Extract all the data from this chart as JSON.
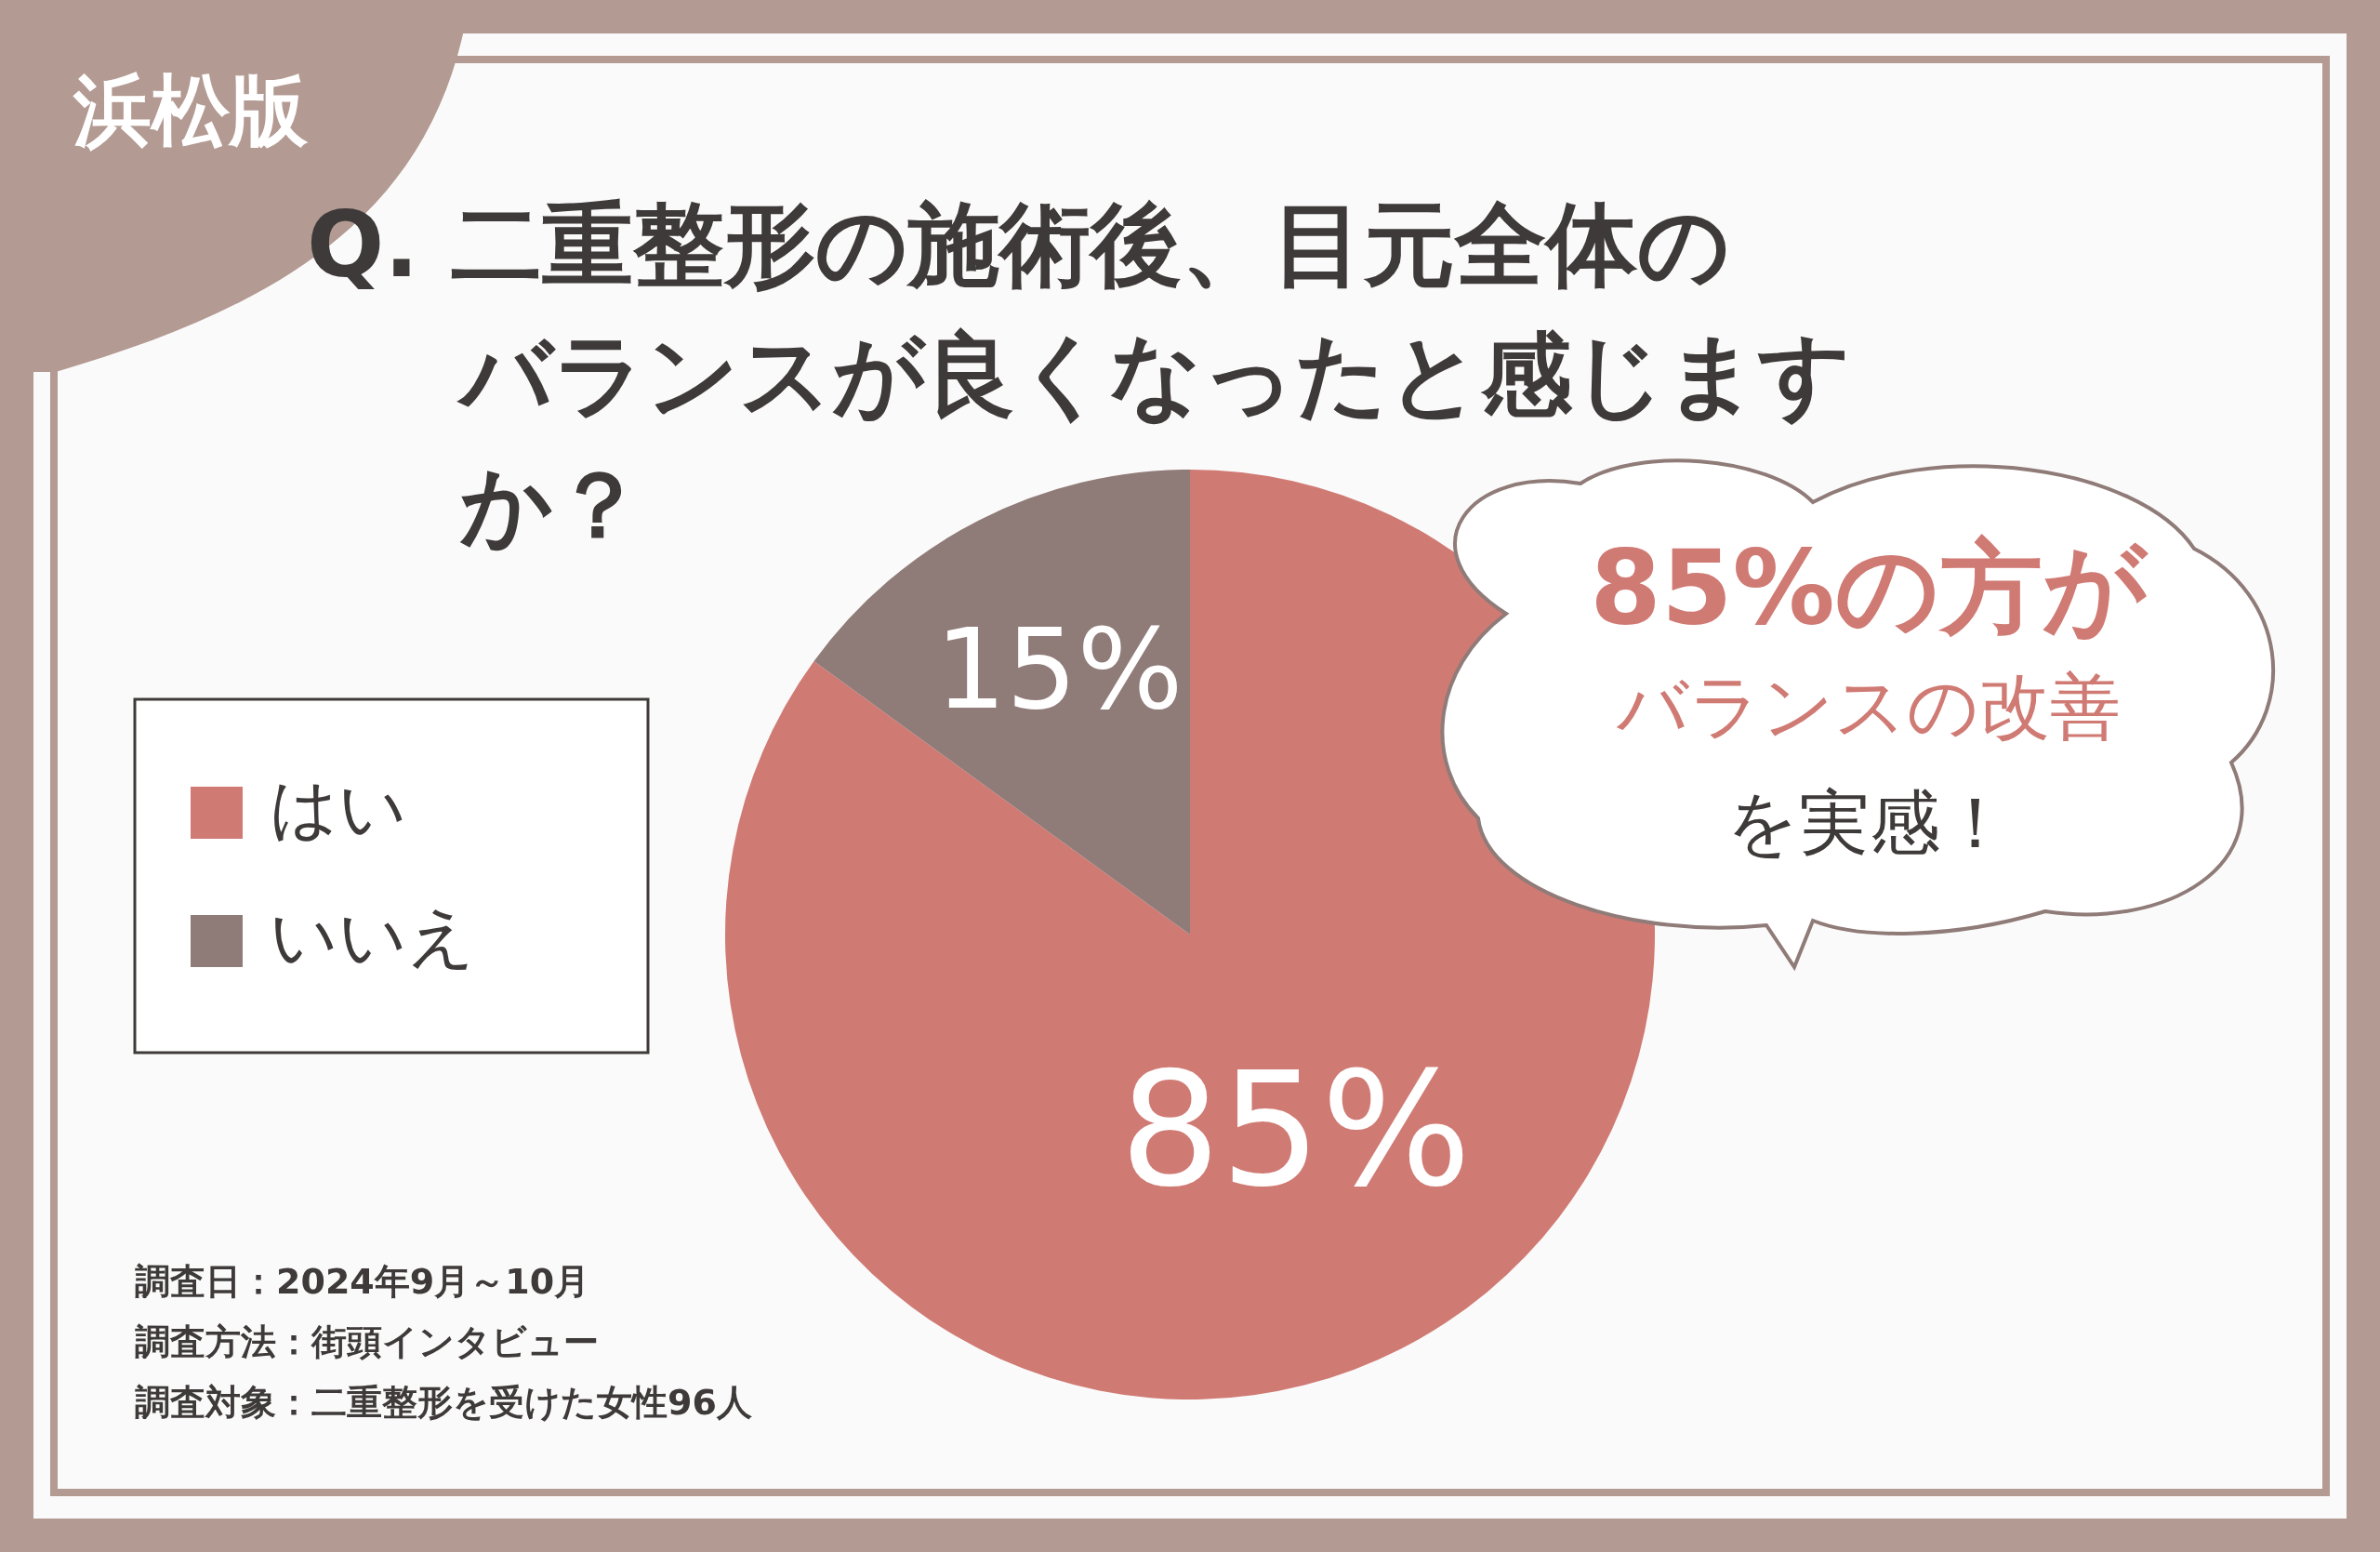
{
  "chart_data": {
    "type": "pie",
    "title": "Q. 二重整形の施術後、目元全体のバランスが良くなったと感じますか？",
    "subtitle": "浜松版",
    "categories": [
      "はい",
      "いいえ"
    ],
    "values": [
      85,
      15
    ],
    "colors": [
      "#d07a74",
      "#8f7b78"
    ],
    "value_labels": [
      "85%",
      "15%"
    ],
    "legend": "left",
    "annotations": [
      "85%の方が",
      "バランスの改善",
      "を実感！",
      "調査日：2024年9月～10月",
      "調査方法：街頭インタビュー",
      "調査対象：二重整形を受けた女性96人"
    ]
  }
}
